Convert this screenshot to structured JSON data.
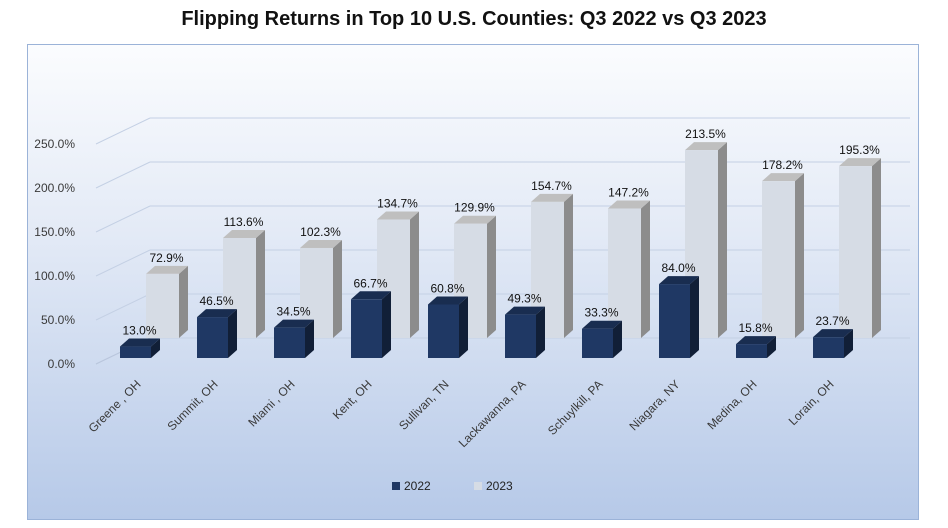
{
  "chart_data": {
    "type": "bar",
    "title": "Flipping Returns in Top 10 U.S. Counties: Q3 2022 vs Q3 2023",
    "categories": [
      "Greene , OH",
      "Summit, OH",
      "Miami , OH",
      "Kent, OH",
      "Sullivan, TN",
      "Lackawanna, PA",
      "Schuylkill, PA",
      "Niagara, NY",
      "Medina, OH",
      "Lorain, OH"
    ],
    "series": [
      {
        "name": "2022",
        "values": [
          13.0,
          46.5,
          34.5,
          66.7,
          60.8,
          49.3,
          33.3,
          84.0,
          15.8,
          23.7
        ],
        "labels": [
          "13.0%",
          "46.5%",
          "34.5%",
          "66.7%",
          "60.8%",
          "49.3%",
          "33.3%",
          "84.0%",
          "15.8%",
          "23.7%"
        ]
      },
      {
        "name": "2023",
        "values": [
          72.9,
          113.6,
          102.3,
          134.7,
          129.9,
          154.7,
          147.2,
          213.5,
          178.2,
          195.3
        ],
        "labels": [
          "72.9%",
          "113.6%",
          "102.3%",
          "134.7%",
          "129.9%",
          "154.7%",
          "147.2%",
          "213.5%",
          "178.2%",
          "195.3%"
        ]
      }
    ],
    "yticks": [
      "0.0%",
      "50.0%",
      "100.0%",
      "150.0%",
      "200.0%",
      "250.0%"
    ],
    "ylim": [
      0,
      250
    ],
    "grid": true,
    "legend_position": "bottom",
    "colors": {
      "2022": "#1f3864",
      "2023": "#d6dce5"
    }
  }
}
